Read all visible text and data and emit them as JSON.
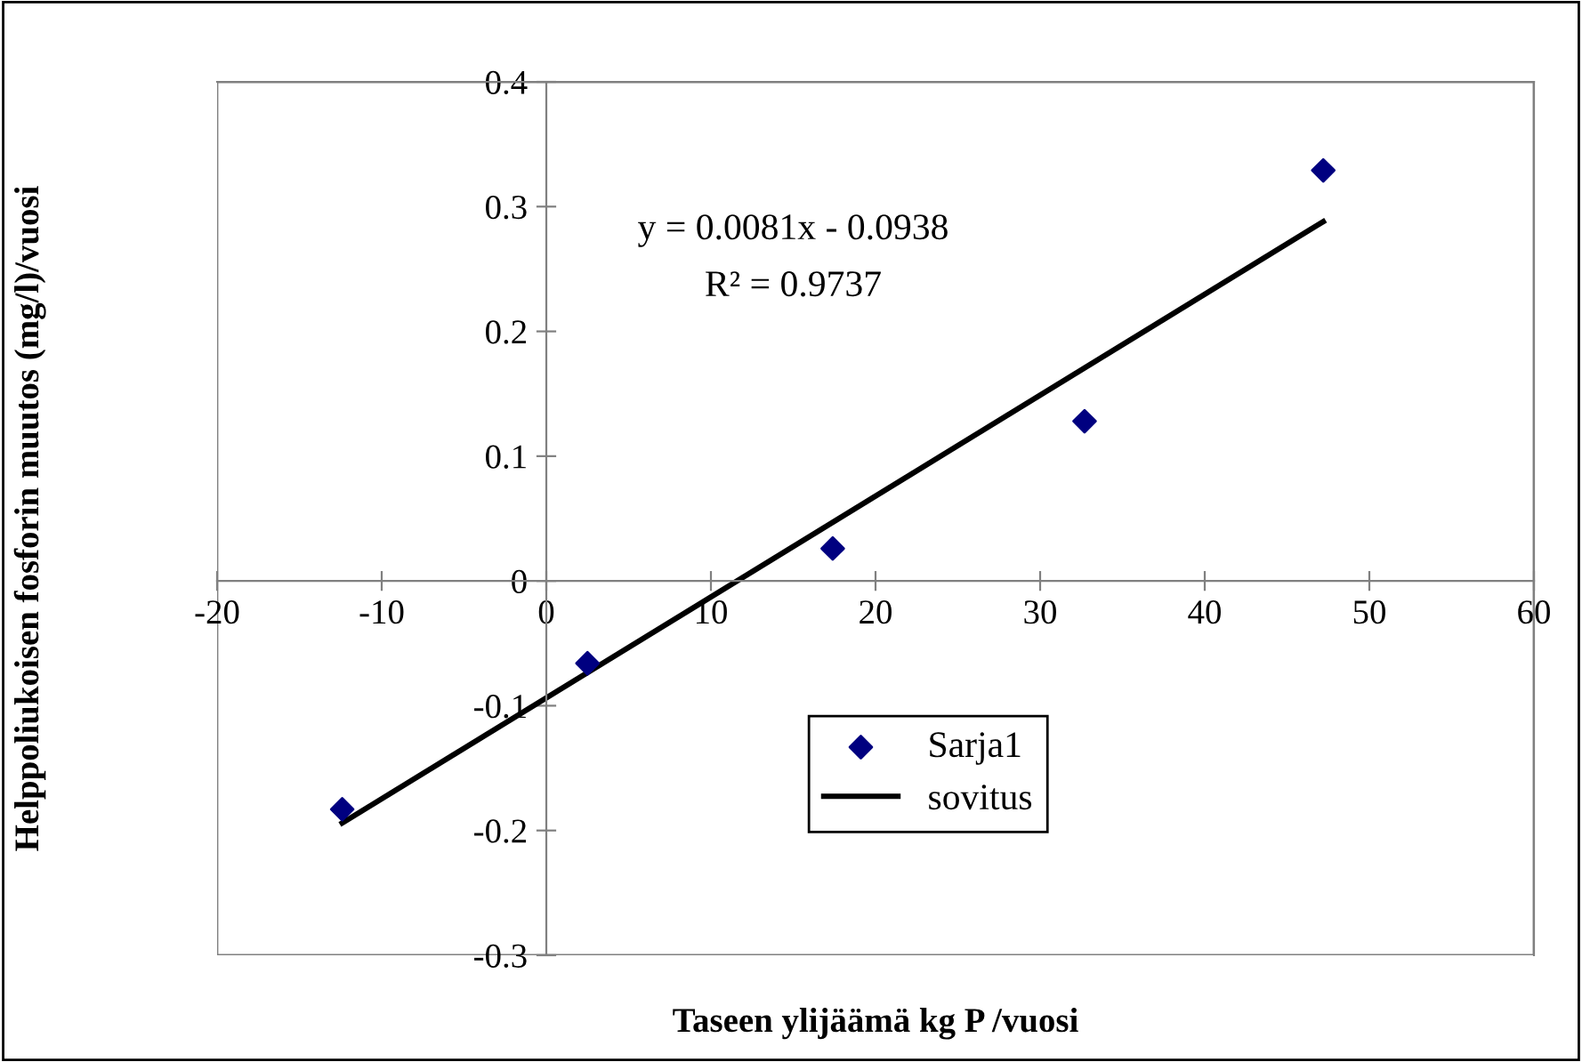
{
  "chart_data": {
    "type": "scatter",
    "xlabel": "Taseen ylijäämä kg P /vuosi",
    "ylabel": "Helppoliukoisen fosforin muutos (mg/l)/vuosi",
    "xlim": [
      -20,
      60
    ],
    "xticks": [
      -20,
      -10,
      0,
      10,
      20,
      30,
      40,
      50,
      60
    ],
    "ylim": [
      -0.3,
      0.4
    ],
    "yticks": [
      -0.3,
      -0.2,
      -0.1,
      0,
      0.1,
      0.2,
      0.3,
      0.4
    ],
    "grid": false,
    "legend": "bottom",
    "annotations": [
      "y = 0.0081x - 0.0938",
      "R² = 0.9737"
    ],
    "series": [
      {
        "name": "Sarja1",
        "marker": "diamond",
        "color": "#000080",
        "x": [
          -12.4,
          2.5,
          17.4,
          32.7,
          47.2
        ],
        "values": [
          -0.183,
          -0.066,
          0.026,
          0.128,
          0.329
        ]
      },
      {
        "name": "sovitus",
        "type": "line",
        "marker": "none",
        "line_style": "solid",
        "color": "#000000",
        "x": [
          -12.4,
          47.2
        ],
        "values": [
          -0.194,
          0.288
        ]
      }
    ]
  }
}
